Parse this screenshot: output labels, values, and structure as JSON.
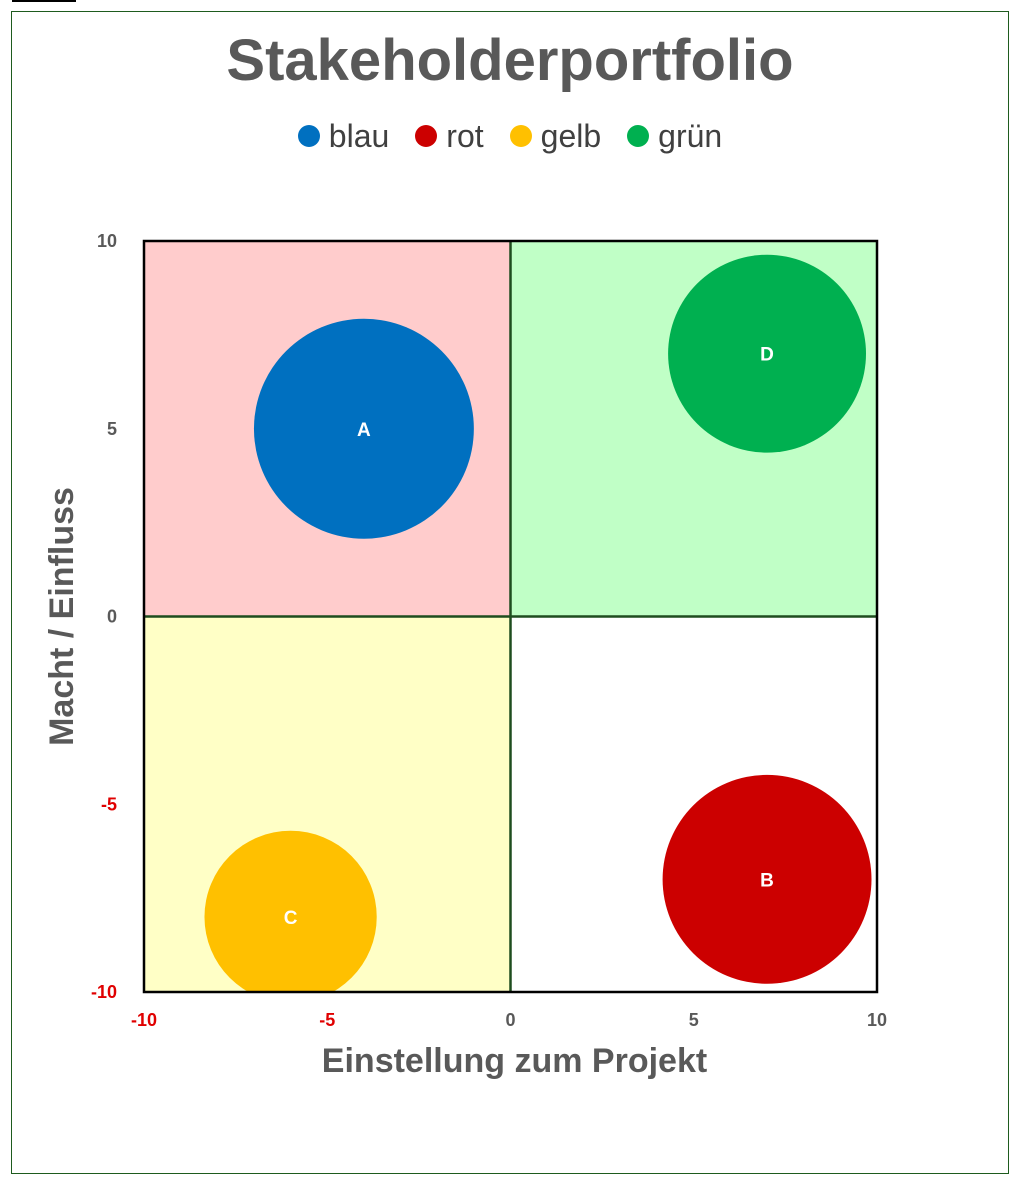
{
  "chart_data": {
    "type": "scatter",
    "title": "Stakeholderportfolio",
    "xlabel": "Einstellung zum Projekt",
    "ylabel": "Macht / Einfluss",
    "xlim": [
      -10,
      10
    ],
    "ylim": [
      -10,
      10
    ],
    "x_ticks": [
      "-10",
      "-5",
      "0",
      "5",
      "10"
    ],
    "y_ticks": [
      "10",
      "5",
      "0",
      "-5",
      "-10"
    ],
    "legend": [
      {
        "label": "blau",
        "color": "#0070c0"
      },
      {
        "label": "rot",
        "color": "#cc0000"
      },
      {
        "label": "gelb",
        "color": "#ffc000"
      },
      {
        "label": "grün",
        "color": "#00b050"
      }
    ],
    "legend_position": "top",
    "quadrants": [
      {
        "name": "top-left",
        "color": "#ffcccc"
      },
      {
        "name": "top-right",
        "color": "#c0ffc6"
      },
      {
        "name": "bottom-left",
        "color": "#ffffc6"
      },
      {
        "name": "bottom-right",
        "color": "#ffffff"
      }
    ],
    "series": [
      {
        "label": "A",
        "x": -4,
        "y": 5,
        "size": 3,
        "color": "#0070c0"
      },
      {
        "label": "B",
        "x": 7,
        "y": -7,
        "size": 2.85,
        "color": "#cc0000"
      },
      {
        "label": "C",
        "x": -6,
        "y": -8,
        "size": 2.35,
        "color": "#ffc000"
      },
      {
        "label": "D",
        "x": 7,
        "y": 7,
        "size": 2.7,
        "color": "#00b050"
      }
    ],
    "negative_tick_color": "#e00000",
    "positive_tick_color": "#595959"
  }
}
